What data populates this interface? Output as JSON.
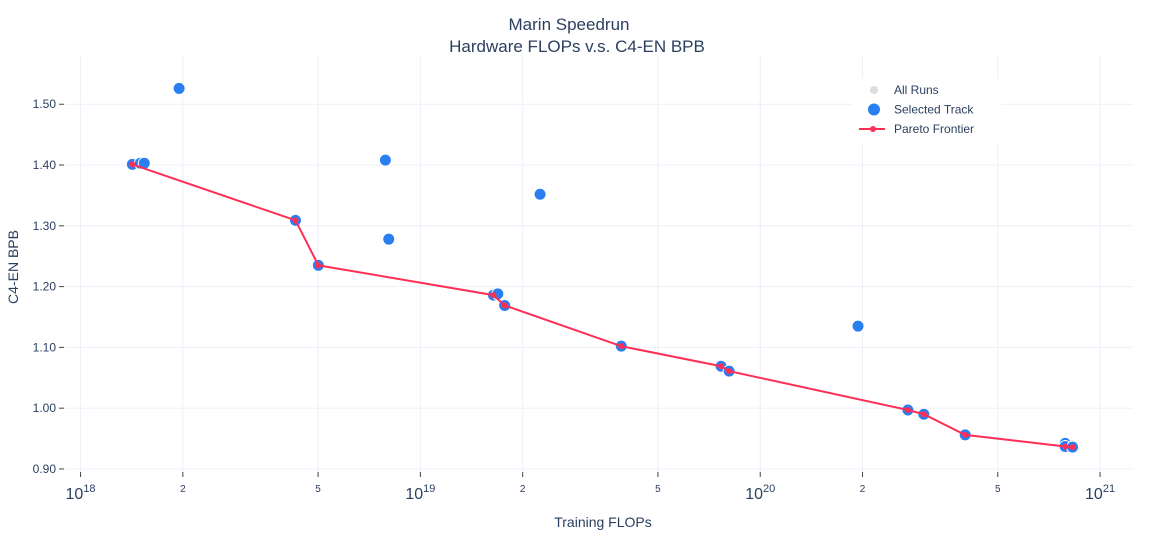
{
  "chart_data": {
    "type": "scatter",
    "title": "Marin Speedrun",
    "subtitle": "Hardware FLOPs v.s. C4-EN BPB",
    "xlabel": "Training FLOPs",
    "ylabel": "C4-EN BPB",
    "x_scale": "log",
    "xlim": [
      9e+17,
      1.25e+21
    ],
    "ylim": [
      0.895,
      1.581
    ],
    "grid": true,
    "legend_position": "top-right",
    "x_ticks": [
      {
        "value": 1e+18,
        "base": "10",
        "exp": "18"
      },
      {
        "value": 2e+18,
        "label": "2"
      },
      {
        "value": 5e+18,
        "label": "5"
      },
      {
        "value": 1e+19,
        "base": "10",
        "exp": "19"
      },
      {
        "value": 2e+19,
        "label": "2"
      },
      {
        "value": 5e+19,
        "label": "5"
      },
      {
        "value": 1e+20,
        "base": "10",
        "exp": "20"
      },
      {
        "value": 2e+20,
        "label": "2"
      },
      {
        "value": 5e+20,
        "label": "5"
      },
      {
        "value": 1e+21,
        "base": "10",
        "exp": "21"
      }
    ],
    "y_ticks": [
      {
        "value": 0.9,
        "label": "0.90"
      },
      {
        "value": 1.0,
        "label": "1.00"
      },
      {
        "value": 1.1,
        "label": "1.10"
      },
      {
        "value": 1.2,
        "label": "1.20"
      },
      {
        "value": 1.3,
        "label": "1.30"
      },
      {
        "value": 1.4,
        "label": "1.40"
      },
      {
        "value": 1.5,
        "label": "1.50"
      }
    ],
    "legend": [
      {
        "name": "All Runs",
        "color": "#dddddd",
        "kind": "marker"
      },
      {
        "name": "Selected Track",
        "color": "#2a7ff0",
        "kind": "marker"
      },
      {
        "name": "Pareto Frontier",
        "color": "#ff2e55",
        "kind": "line"
      }
    ],
    "series": [
      {
        "name": "Selected Track",
        "color": "#2a7ff0",
        "points": [
          [
            1.42e+18,
            1.401
          ],
          [
            1.5e+18,
            1.403
          ],
          [
            1.54e+18,
            1.403
          ],
          [
            1.95e+18,
            1.526
          ],
          [
            4.29e+18,
            1.309
          ],
          [
            5.01e+18,
            1.235
          ],
          [
            7.89e+18,
            1.408
          ],
          [
            8.07e+18,
            1.278
          ],
          [
            1.64e+19,
            1.186
          ],
          [
            1.69e+19,
            1.188
          ],
          [
            1.77e+19,
            1.169
          ],
          [
            2.25e+19,
            1.352
          ],
          [
            3.9e+19,
            1.102
          ],
          [
            7.67e+19,
            1.069
          ],
          [
            8.1e+19,
            1.061
          ],
          [
            1.94e+20,
            1.135
          ],
          [
            2.72e+20,
            0.997
          ],
          [
            3.03e+20,
            0.99
          ],
          [
            4.01e+20,
            0.956
          ],
          [
            7.89e+20,
            0.942
          ],
          [
            7.89e+20,
            0.937
          ],
          [
            8.3e+20,
            0.936
          ]
        ]
      },
      {
        "name": "Pareto Frontier",
        "color": "#ff2e55",
        "points": [
          [
            1.42e+18,
            1.401
          ],
          [
            4.29e+18,
            1.309
          ],
          [
            5.01e+18,
            1.235
          ],
          [
            1.64e+19,
            1.186
          ],
          [
            1.77e+19,
            1.169
          ],
          [
            3.9e+19,
            1.102
          ],
          [
            7.67e+19,
            1.069
          ],
          [
            8.1e+19,
            1.061
          ],
          [
            2.72e+20,
            0.997
          ],
          [
            3.03e+20,
            0.99
          ],
          [
            4.01e+20,
            0.956
          ],
          [
            7.89e+20,
            0.937
          ],
          [
            8.3e+20,
            0.936
          ]
        ]
      }
    ]
  }
}
